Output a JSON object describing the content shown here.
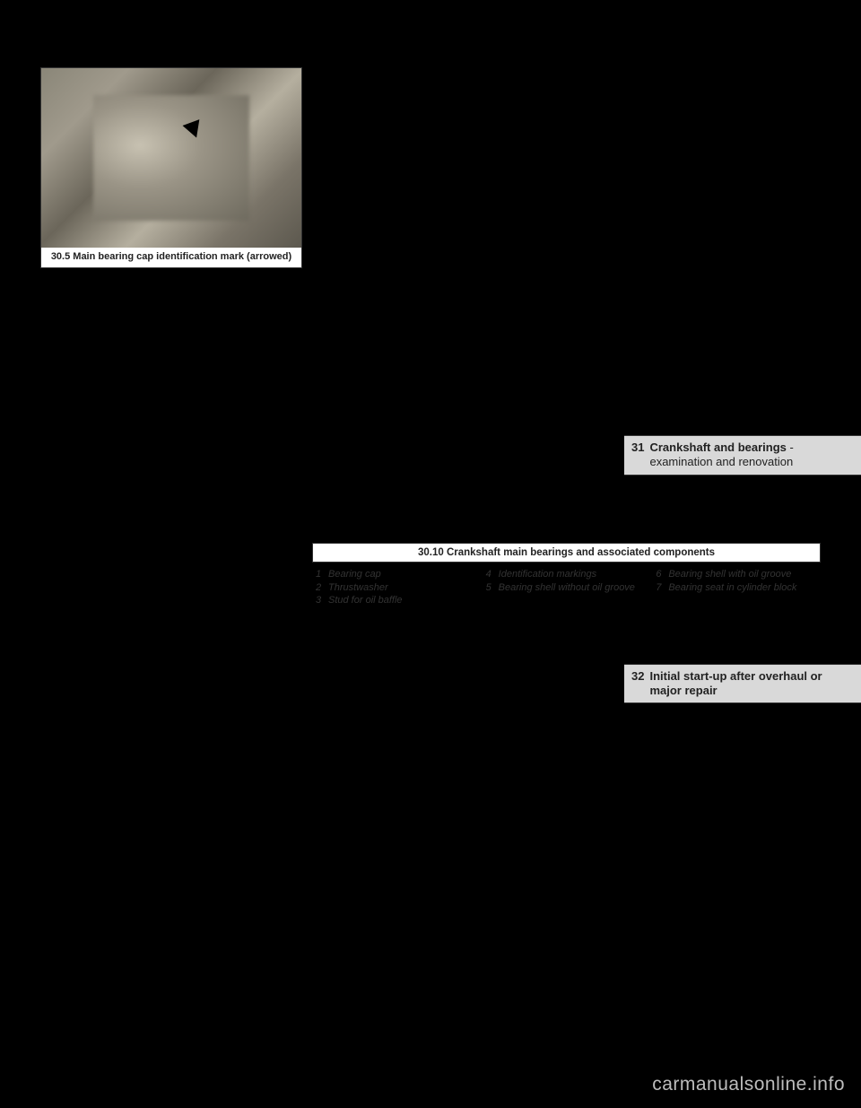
{
  "photo": {
    "caption": "30.5 Main bearing cap identification mark (arrowed)"
  },
  "figure": {
    "caption": "30.10 Crankshaft main bearings and associated components",
    "legend": {
      "col1": [
        {
          "n": "1",
          "t": "Bearing cap"
        },
        {
          "n": "2",
          "t": "Thrustwasher"
        },
        {
          "n": "3",
          "t": "Stud for oil baffle"
        }
      ],
      "col2": [
        {
          "n": "4",
          "t": "Identification markings"
        },
        {
          "n": "5",
          "t": "Bearing shell without oil groove"
        }
      ],
      "col3": [
        {
          "n": "6",
          "t": "Bearing shell with oil groove"
        },
        {
          "n": "7",
          "t": "Bearing seat in cylinder block"
        }
      ]
    }
  },
  "sections": {
    "s31": {
      "num": "31",
      "title_bold": "Crankshaft and bearings",
      "title_rest": " - examination and renovation"
    },
    "s32": {
      "num": "32",
      "title_bold": "Initial start-up after overhaul or major repair",
      "title_rest": ""
    }
  },
  "watermark": "carmanualsonline.info",
  "colors": {
    "page_bg": "#000000",
    "panel_bg": "#ffffff",
    "section_bg": "#d9d9d9",
    "border": "#333333",
    "text": "#222222",
    "watermark": "#bdbdbd"
  }
}
